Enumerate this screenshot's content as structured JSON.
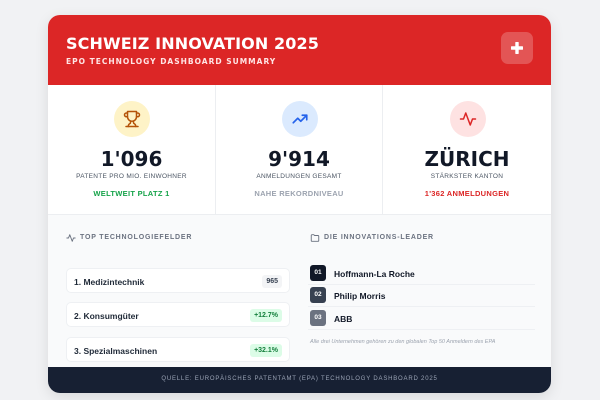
{
  "header": {
    "title": "SCHWEIZ INNOVATION 2025",
    "subtitle": "EPO TECHNOLOGY DASHBOARD SUMMARY",
    "action_icon": "plus-icon",
    "accent_color": "#dc2626"
  },
  "stats": [
    {
      "icon": "trophy-icon",
      "value": "1'096",
      "label": "PATENTE PRO MIO. EINWOHNER",
      "note": "WELTWEIT PLATZ 1",
      "note_color": "#16a34a"
    },
    {
      "icon": "trending-up-icon",
      "value": "9'914",
      "label": "ANMELDUNGEN GESAMT",
      "note": "NAHE REKORDNIVEAU",
      "note_color": "#9ca3af"
    },
    {
      "icon": "activity-icon",
      "value": "ZÜRICH",
      "label": "STÄRKSTER KANTON",
      "note": "1'362 ANMELDUNGEN",
      "note_color": "#dc2626"
    }
  ],
  "tech": {
    "title": "TOP TECHNOLOGIEFELDER",
    "items": [
      {
        "name": "1. Medizintechnik",
        "badge": "965"
      },
      {
        "name": "2. Konsumgüter",
        "badge": "+12.7%"
      },
      {
        "name": "3. Spezialmaschinen",
        "badge": "+32.1%"
      }
    ]
  },
  "leaders": {
    "title": "DIE INNOVATIONS-LEADER",
    "items": [
      {
        "rank": "01",
        "name": "Hoffmann-La Roche"
      },
      {
        "rank": "02",
        "name": "Philip Morris"
      },
      {
        "rank": "03",
        "name": "ABB"
      }
    ],
    "footnote": "Alle drei Unternehmen gehören zu den globalen Top 50 Anmeldern des EPA"
  },
  "footer": {
    "source": "QUELLE: EUROPÄISCHES PATENTAMT (EPA) TECHNOLOGY DASHBOARD 2025"
  }
}
